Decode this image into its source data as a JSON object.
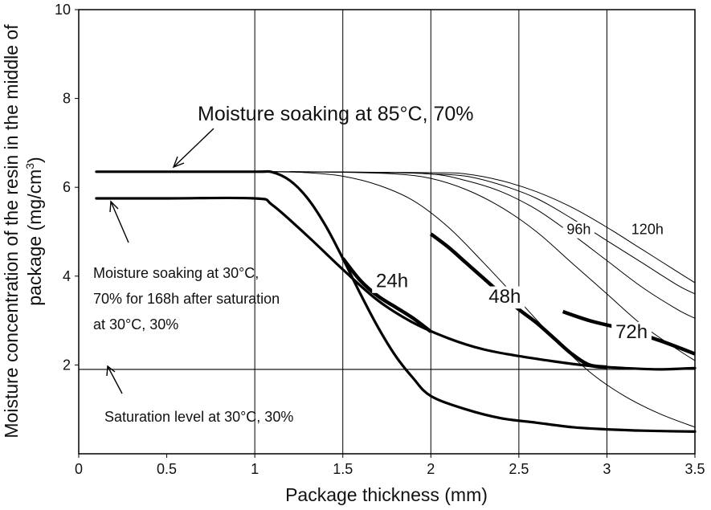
{
  "chart_data": {
    "type": "line",
    "xlabel": "Package thickness (mm)",
    "ylabel_line1": "Moisture concentration of the resin in the middle of",
    "ylabel_line2_main": "package (mg/cm",
    "ylabel_line2_sup": "3",
    "ylabel_line2_end": ")",
    "xlim": [
      0,
      3.5
    ],
    "ylim": [
      0,
      10
    ],
    "xticks": [
      0,
      0.5,
      1,
      1.5,
      2,
      2.5,
      3,
      3.5
    ],
    "xtick_labels": [
      "0",
      "0.5",
      "1",
      "1.5",
      "2",
      "2.5",
      "3",
      "3.5"
    ],
    "yticks": [
      2,
      4,
      6,
      8,
      10
    ],
    "ytick_labels": [
      "2",
      "4",
      "6",
      "8",
      "10"
    ],
    "vertical_grid": [
      1,
      1.5,
      2,
      2.5,
      3
    ],
    "saturation_level": 1.9,
    "series": [
      {
        "name": "Moisture soaking at 85°C, 70%",
        "style": "thick",
        "x": [
          0.1,
          0.5,
          1.0,
          1.1,
          1.2,
          1.3,
          1.4,
          1.5,
          1.6,
          1.7,
          1.8,
          1.9,
          2.0,
          2.2,
          2.4,
          2.6,
          2.8,
          3.0,
          3.2,
          3.5
        ],
        "y": [
          6.35,
          6.35,
          6.35,
          6.34,
          6.15,
          5.75,
          5.15,
          4.4,
          3.6,
          2.85,
          2.2,
          1.7,
          1.3,
          1.0,
          0.8,
          0.7,
          0.6,
          0.55,
          0.52,
          0.5
        ]
      },
      {
        "name": "Moisture soaking at 30°C, 70% for 168h after saturation at 30°C, 30%",
        "style": "thick",
        "x": [
          0.1,
          0.5,
          1.0,
          1.1,
          1.3,
          1.5,
          1.7,
          1.9,
          2.1,
          2.3,
          2.5,
          2.7,
          2.9,
          3.1,
          3.3,
          3.5
        ],
        "y": [
          5.75,
          5.75,
          5.75,
          5.6,
          4.9,
          4.15,
          3.45,
          2.95,
          2.6,
          2.35,
          2.2,
          2.08,
          1.98,
          1.93,
          1.9,
          1.93
        ]
      },
      {
        "name": "24h",
        "style": "thin",
        "x": [
          1.1,
          1.3,
          1.5,
          1.7,
          1.9,
          2.1,
          2.3,
          2.5,
          2.7,
          2.9,
          3.1,
          3.3,
          3.5
        ],
        "y": [
          6.35,
          6.33,
          6.25,
          6.05,
          5.7,
          5.1,
          4.3,
          3.45,
          2.6,
          1.85,
          1.3,
          0.9,
          0.6
        ]
      },
      {
        "name": "48h",
        "style": "thin",
        "x": [
          1.1,
          1.5,
          1.8,
          2.0,
          2.2,
          2.4,
          2.6,
          2.8,
          3.0,
          3.2,
          3.4,
          3.5
        ],
        "y": [
          6.35,
          6.34,
          6.3,
          6.2,
          5.95,
          5.55,
          5.0,
          4.3,
          3.6,
          2.9,
          2.35,
          2.1
        ]
      },
      {
        "name": "72h",
        "style": "thin",
        "x": [
          1.1,
          1.6,
          2.0,
          2.2,
          2.4,
          2.6,
          2.8,
          3.0,
          3.2,
          3.4,
          3.5
        ],
        "y": [
          6.35,
          6.34,
          6.3,
          6.15,
          5.9,
          5.5,
          4.95,
          4.35,
          3.75,
          3.25,
          3.05
        ]
      },
      {
        "name": "96h",
        "style": "thin",
        "x": [
          1.2,
          1.8,
          2.0,
          2.2,
          2.4,
          2.6,
          2.8,
          3.0,
          3.2,
          3.4,
          3.5
        ],
        "y": [
          6.35,
          6.33,
          6.3,
          6.25,
          6.05,
          5.75,
          5.3,
          4.8,
          4.3,
          3.8,
          3.6
        ]
      },
      {
        "name": "120h",
        "style": "thin",
        "x": [
          1.2,
          2.0,
          2.2,
          2.4,
          2.6,
          2.8,
          3.0,
          3.2,
          3.4,
          3.5
        ],
        "y": [
          6.35,
          6.33,
          6.3,
          6.15,
          5.9,
          5.55,
          5.1,
          4.6,
          4.1,
          3.85
        ]
      }
    ],
    "emphasized_segments": [
      {
        "label": "24h",
        "x": [
          1.5,
          1.6,
          1.7,
          1.8,
          1.9,
          2.0
        ],
        "y": [
          4.4,
          3.9,
          3.55,
          3.3,
          3.05,
          2.75
        ]
      },
      {
        "label": "48h",
        "x": [
          2.0,
          2.1,
          2.2,
          2.3,
          2.4,
          2.5,
          2.6,
          2.7,
          2.8,
          2.9,
          3.0
        ],
        "y": [
          4.95,
          4.65,
          4.3,
          3.95,
          3.6,
          3.25,
          2.95,
          2.6,
          2.25,
          2.0,
          1.95
        ]
      },
      {
        "label": "72h",
        "x": [
          2.75,
          2.9,
          3.1,
          3.3,
          3.5
        ],
        "y": [
          3.2,
          3.0,
          2.8,
          2.55,
          2.25
        ]
      }
    ],
    "curve_labels": [
      {
        "text": "24h",
        "x": 1.78,
        "y": 3.75,
        "size": "big"
      },
      {
        "text": "48h",
        "x": 2.42,
        "y": 3.4,
        "size": "big"
      },
      {
        "text": "72h",
        "x": 3.14,
        "y": 2.6,
        "size": "big"
      },
      {
        "text": "96h",
        "x": 2.84,
        "y": 4.95,
        "size": "small"
      },
      {
        "text": "120h",
        "x": 3.23,
        "y": 4.95,
        "size": "small"
      }
    ],
    "annotations": {
      "top_label": "Moisture soaking at 85°C, 70%",
      "mid_label_lines": [
        "Moisture soaking at 30°C,",
        "70% for 168h after saturation",
        "at 30°C, 30%"
      ],
      "bottom_label": "Saturation level at 30°C, 30%"
    }
  }
}
